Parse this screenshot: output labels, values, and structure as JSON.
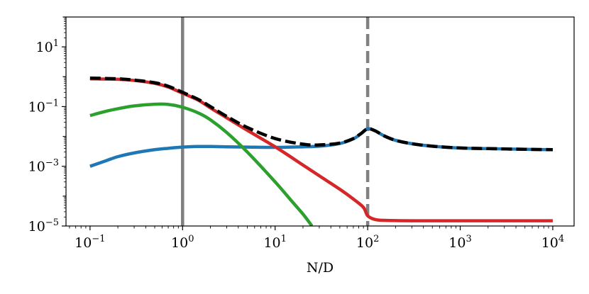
{
  "chart_data": {
    "type": "line",
    "title": "",
    "xlabel": "N/D",
    "ylabel": "",
    "x_scale": "log",
    "y_scale": "log",
    "xlim": [
      0.055,
      17000
    ],
    "ylim": [
      1e-05,
      100
    ],
    "x_ticks": [
      {
        "value": 0.1,
        "base": "10",
        "exp": "−1"
      },
      {
        "value": 1,
        "base": "10",
        "exp": "0"
      },
      {
        "value": 10,
        "base": "10",
        "exp": "1"
      },
      {
        "value": 100,
        "base": "10",
        "exp": "2"
      },
      {
        "value": 1000,
        "base": "10",
        "exp": "3"
      },
      {
        "value": 10000,
        "base": "10",
        "exp": "4"
      }
    ],
    "y_ticks": [
      {
        "value": 10,
        "base": "10",
        "exp": "1"
      },
      {
        "value": 0.1,
        "base": "10",
        "exp": "−1"
      },
      {
        "value": 0.001,
        "base": "10",
        "exp": "−3"
      },
      {
        "value": 1e-05,
        "base": "10",
        "exp": "−5"
      }
    ],
    "vlines": [
      {
        "x": 1,
        "style": "solid",
        "color": "#808080"
      },
      {
        "x": 100,
        "style": "dashed",
        "color": "#808080"
      }
    ],
    "series": [
      {
        "color": "#1f77b4",
        "style": "solid",
        "points": [
          [
            0.1,
            0.001
          ],
          [
            0.15,
            0.00155
          ],
          [
            0.2,
            0.0021
          ],
          [
            0.3,
            0.0028
          ],
          [
            0.5,
            0.0036
          ],
          [
            0.7,
            0.004
          ],
          [
            1,
            0.0044
          ],
          [
            1.5,
            0.0046
          ],
          [
            2,
            0.0046
          ],
          [
            3,
            0.0045
          ],
          [
            5,
            0.0044
          ],
          [
            10,
            0.0043
          ],
          [
            20,
            0.0045
          ],
          [
            30,
            0.0047
          ],
          [
            50,
            0.0058
          ],
          [
            70,
            0.0083
          ],
          [
            85,
            0.0125
          ],
          [
            100,
            0.018
          ],
          [
            120,
            0.0155
          ],
          [
            150,
            0.0105
          ],
          [
            200,
            0.0074
          ],
          [
            300,
            0.0057
          ],
          [
            500,
            0.0047
          ],
          [
            1000,
            0.0041
          ],
          [
            2000,
            0.0039
          ],
          [
            5000,
            0.0037
          ],
          [
            10000,
            0.0036
          ]
        ]
      },
      {
        "color": "#2ca02c",
        "style": "solid",
        "points": [
          [
            0.1,
            0.05
          ],
          [
            0.15,
            0.07
          ],
          [
            0.2,
            0.085
          ],
          [
            0.3,
            0.105
          ],
          [
            0.5,
            0.12
          ],
          [
            0.7,
            0.118
          ],
          [
            1,
            0.095
          ],
          [
            1.5,
            0.06
          ],
          [
            2,
            0.036
          ],
          [
            3,
            0.0135
          ],
          [
            5,
            0.003
          ],
          [
            10,
            0.0003
          ],
          [
            15,
            7e-05
          ],
          [
            20,
            2.5e-05
          ],
          [
            25,
            1e-05
          ]
        ]
      },
      {
        "color": "#d62728",
        "style": "solid",
        "points": [
          [
            0.1,
            0.85
          ],
          [
            0.2,
            0.82
          ],
          [
            0.3,
            0.75
          ],
          [
            0.5,
            0.6
          ],
          [
            0.7,
            0.45
          ],
          [
            1,
            0.28
          ],
          [
            1.5,
            0.16
          ],
          [
            2,
            0.09
          ],
          [
            3,
            0.042
          ],
          [
            5,
            0.016
          ],
          [
            10,
            0.0045
          ],
          [
            20,
            0.0011
          ],
          [
            30,
            0.00048
          ],
          [
            50,
            0.00017
          ],
          [
            70,
            8e-05
          ],
          [
            90,
            4.2e-05
          ],
          [
            100,
            2.2e-05
          ],
          [
            120,
            1.65e-05
          ],
          [
            150,
            1.55e-05
          ],
          [
            300,
            1.5e-05
          ],
          [
            1000,
            1.5e-05
          ],
          [
            10000,
            1.5e-05
          ]
        ]
      },
      {
        "color": "#000000",
        "style": "dashed",
        "points": [
          [
            0.1,
            0.9
          ],
          [
            0.2,
            0.85
          ],
          [
            0.3,
            0.77
          ],
          [
            0.5,
            0.63
          ],
          [
            0.7,
            0.48
          ],
          [
            1,
            0.3
          ],
          [
            1.5,
            0.17
          ],
          [
            2,
            0.1
          ],
          [
            3,
            0.047
          ],
          [
            5,
            0.02
          ],
          [
            10,
            0.0085
          ],
          [
            20,
            0.0055
          ],
          [
            30,
            0.0052
          ],
          [
            50,
            0.006
          ],
          [
            70,
            0.0085
          ],
          [
            85,
            0.0126
          ],
          [
            100,
            0.018
          ],
          [
            120,
            0.0155
          ],
          [
            150,
            0.0105
          ],
          [
            200,
            0.0074
          ],
          [
            300,
            0.0057
          ],
          [
            500,
            0.0047
          ],
          [
            1000,
            0.0041
          ],
          [
            2000,
            0.0039
          ],
          [
            5000,
            0.0037
          ],
          [
            10000,
            0.0036
          ]
        ]
      }
    ],
    "overlay_on_series": {
      "base": 0,
      "dash_over": 3,
      "from_x": 100
    },
    "grid": false,
    "legend": "none"
  }
}
